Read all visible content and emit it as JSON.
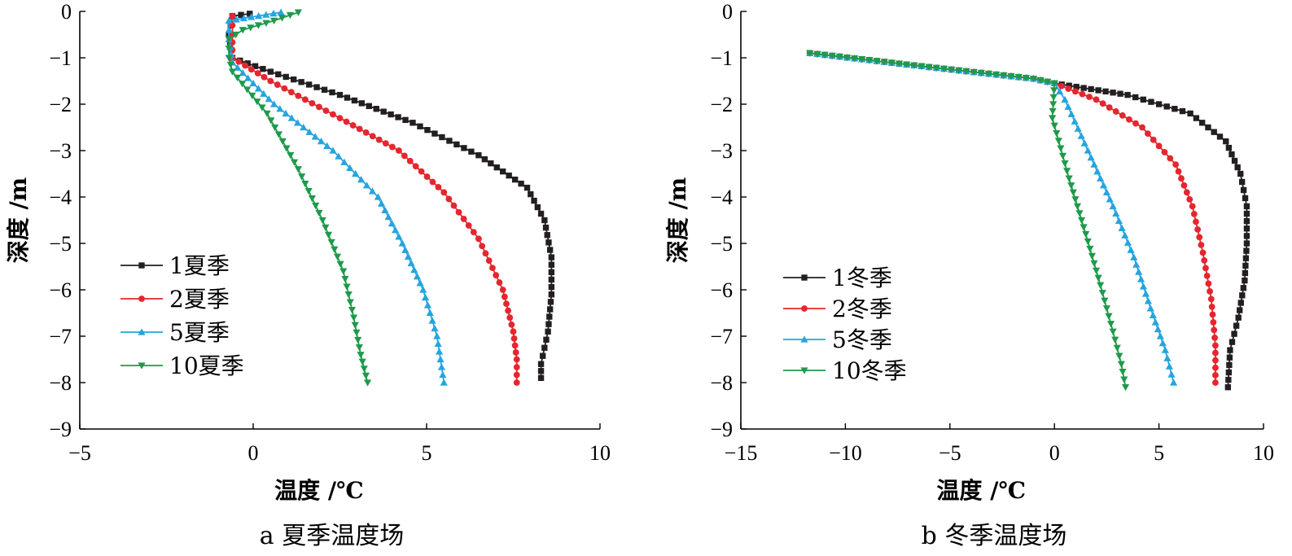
{
  "chart_data": [
    {
      "type": "line",
      "panel": "a",
      "caption": "a 夏季温度场",
      "xlabel": "温度 /℃",
      "ylabel": "深度 /m",
      "xlim": [
        -5,
        10
      ],
      "ylim": [
        -9,
        0
      ],
      "xticks": [
        "−5",
        "0",
        "5",
        "10"
      ],
      "yticks": [
        "0",
        "−1",
        "−2",
        "−3",
        "−4",
        "−5",
        "−6",
        "−7",
        "−8",
        "−9"
      ],
      "legend_position": "left-middle",
      "series": [
        {
          "name": "1夏季",
          "color": "#231f20",
          "marker": "square",
          "points": [
            [
              -0.1,
              -0.05
            ],
            [
              -0.6,
              -0.1
            ],
            [
              -0.7,
              -0.5
            ],
            [
              -0.6,
              -1.0
            ],
            [
              0.5,
              -1.3
            ],
            [
              2.5,
              -1.8
            ],
            [
              4.6,
              -2.4
            ],
            [
              6.5,
              -3.1
            ],
            [
              7.9,
              -3.8
            ],
            [
              8.4,
              -4.5
            ],
            [
              8.6,
              -5.3
            ],
            [
              8.6,
              -6.1
            ],
            [
              8.5,
              -6.9
            ],
            [
              8.3,
              -7.6
            ],
            [
              8.3,
              -7.9
            ]
          ]
        },
        {
          "name": "2夏季",
          "color": "#e5262e",
          "marker": "circle",
          "points": [
            [
              -0.6,
              -0.1
            ],
            [
              -0.6,
              -0.5
            ],
            [
              -0.6,
              -1.0
            ],
            [
              0.5,
              -1.5
            ],
            [
              2.5,
              -2.3
            ],
            [
              4.2,
              -3.0
            ],
            [
              5.5,
              -3.9
            ],
            [
              6.5,
              -4.9
            ],
            [
              7.2,
              -6.0
            ],
            [
              7.5,
              -6.9
            ],
            [
              7.6,
              -7.5
            ],
            [
              7.6,
              -8.0
            ]
          ]
        },
        {
          "name": "5夏季",
          "color": "#26a4de",
          "marker": "triangle-up",
          "points": [
            [
              0.8,
              -0.02
            ],
            [
              -0.7,
              -0.2
            ],
            [
              -0.7,
              -0.6
            ],
            [
              -0.6,
              -1.1
            ],
            [
              0.6,
              -2.0
            ],
            [
              2.3,
              -3.0
            ],
            [
              3.6,
              -4.0
            ],
            [
              4.3,
              -5.0
            ],
            [
              4.9,
              -6.0
            ],
            [
              5.3,
              -7.0
            ],
            [
              5.5,
              -8.0
            ]
          ]
        },
        {
          "name": "10夏季",
          "color": "#1e9a4b",
          "marker": "triangle-down",
          "points": [
            [
              1.3,
              -0.02
            ],
            [
              0.6,
              -0.2
            ],
            [
              -0.3,
              -0.4
            ],
            [
              -0.7,
              -0.6
            ],
            [
              -0.7,
              -1.0
            ],
            [
              -0.6,
              -1.3
            ],
            [
              0.4,
              -2.2
            ],
            [
              1.3,
              -3.4
            ],
            [
              2.0,
              -4.5
            ],
            [
              2.6,
              -5.6
            ],
            [
              2.9,
              -6.6
            ],
            [
              3.1,
              -7.4
            ],
            [
              3.3,
              -8.0
            ]
          ]
        }
      ]
    },
    {
      "type": "line",
      "panel": "b",
      "caption": "b 冬季温度场",
      "xlabel": "温度 /℃",
      "ylabel": "深度 /m",
      "xlim": [
        -15,
        10
      ],
      "ylim": [
        -9,
        0
      ],
      "xticks": [
        "−15",
        "−10",
        "−5",
        "0",
        "5",
        "10"
      ],
      "yticks": [
        "0",
        "−1",
        "−2",
        "−3",
        "−4",
        "−5",
        "−6",
        "−7",
        "−8",
        "−9"
      ],
      "legend_position": "left-middle",
      "series": [
        {
          "name": "1冬季",
          "color": "#231f20",
          "marker": "square",
          "points": [
            [
              -11.7,
              -0.9
            ],
            [
              -6.0,
              -1.2
            ],
            [
              -1.0,
              -1.45
            ],
            [
              0.0,
              -1.55
            ],
            [
              3.5,
              -1.8
            ],
            [
              6.5,
              -2.2
            ],
            [
              8.2,
              -2.8
            ],
            [
              8.9,
              -3.5
            ],
            [
              9.2,
              -4.2
            ],
            [
              9.2,
              -5.0
            ],
            [
              9.1,
              -5.8
            ],
            [
              8.8,
              -6.6
            ],
            [
              8.4,
              -7.3
            ],
            [
              8.3,
              -8.1
            ]
          ]
        },
        {
          "name": "2冬季",
          "color": "#e5262e",
          "marker": "circle",
          "points": [
            [
              -11.7,
              -0.9
            ],
            [
              -6.0,
              -1.2
            ],
            [
              -1.0,
              -1.45
            ],
            [
              0.0,
              -1.55
            ],
            [
              2.0,
              -1.9
            ],
            [
              4.2,
              -2.5
            ],
            [
              5.8,
              -3.3
            ],
            [
              6.6,
              -4.2
            ],
            [
              7.1,
              -5.2
            ],
            [
              7.5,
              -6.2
            ],
            [
              7.7,
              -7.2
            ],
            [
              7.7,
              -8.0
            ]
          ]
        },
        {
          "name": "5冬季",
          "color": "#26a4de",
          "marker": "triangle-up",
          "points": [
            [
              -11.7,
              -0.9
            ],
            [
              -6.0,
              -1.2
            ],
            [
              -1.0,
              -1.45
            ],
            [
              0.0,
              -1.55
            ],
            [
              0.5,
              -1.9
            ],
            [
              1.6,
              -3.0
            ],
            [
              2.8,
              -4.2
            ],
            [
              3.8,
              -5.3
            ],
            [
              4.6,
              -6.4
            ],
            [
              5.3,
              -7.3
            ],
            [
              5.7,
              -8.0
            ]
          ]
        },
        {
          "name": "10冬季",
          "color": "#1e9a4b",
          "marker": "triangle-down",
          "points": [
            [
              -11.7,
              -0.9
            ],
            [
              -6.0,
              -1.2
            ],
            [
              -1.0,
              -1.45
            ],
            [
              0.0,
              -1.55
            ],
            [
              -0.1,
              -2.3
            ],
            [
              0.7,
              -3.6
            ],
            [
              1.5,
              -4.8
            ],
            [
              2.2,
              -5.9
            ],
            [
              2.8,
              -6.9
            ],
            [
              3.2,
              -7.6
            ],
            [
              3.4,
              -8.1
            ]
          ]
        }
      ]
    }
  ]
}
